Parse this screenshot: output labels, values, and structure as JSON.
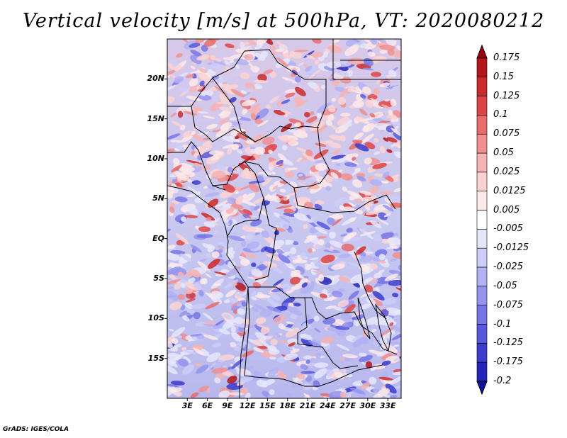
{
  "title": "Vertical velocity [m/s] at 500hPa, VT: 2020080212",
  "map": {
    "variable": "Vertical velocity",
    "units": "m/s",
    "level": "500hPa",
    "valid_time": "2020080212",
    "lat_labels": [
      "20N",
      "15N",
      "10N",
      "5N",
      "EQ",
      "5S",
      "10S",
      "15S"
    ],
    "lon_labels": [
      "3E",
      "6E",
      "9E",
      "12E",
      "15E",
      "18E",
      "21E",
      "24E",
      "27E",
      "30E",
      "33E"
    ],
    "lat_range": [
      -20,
      25
    ],
    "lon_range": [
      0,
      35
    ],
    "colors": {
      "positive_strong": "#a50f15",
      "positive_mid": "#ef6f6f",
      "negative_mid": "#8a8af0",
      "negative_strong": "#2020c0",
      "border": "#000000"
    }
  },
  "colorbar": {
    "labels": [
      "0.175",
      "0.15",
      "0.125",
      "0.1",
      "0.075",
      "0.05",
      "0.025",
      "0.0125",
      "0.005",
      "-0.005",
      "-0.0125",
      "-0.025",
      "-0.05",
      "-0.075",
      "-0.1",
      "-0.125",
      "-0.175",
      "-0.2"
    ],
    "colors": [
      "#99000d",
      "#b3161c",
      "#cb2a2a",
      "#de4545",
      "#e86a6a",
      "#f08f8f",
      "#f6b3b3",
      "#fbd3d3",
      "#fde9e9",
      "#ffffff",
      "#e6e6fb",
      "#cdcdf8",
      "#b1b1f3",
      "#9393ee",
      "#7676e6",
      "#5858dc",
      "#3b3bcc",
      "#2424b8",
      "#13139a"
    ]
  },
  "footer": "GrADS: IGES/COLA"
}
